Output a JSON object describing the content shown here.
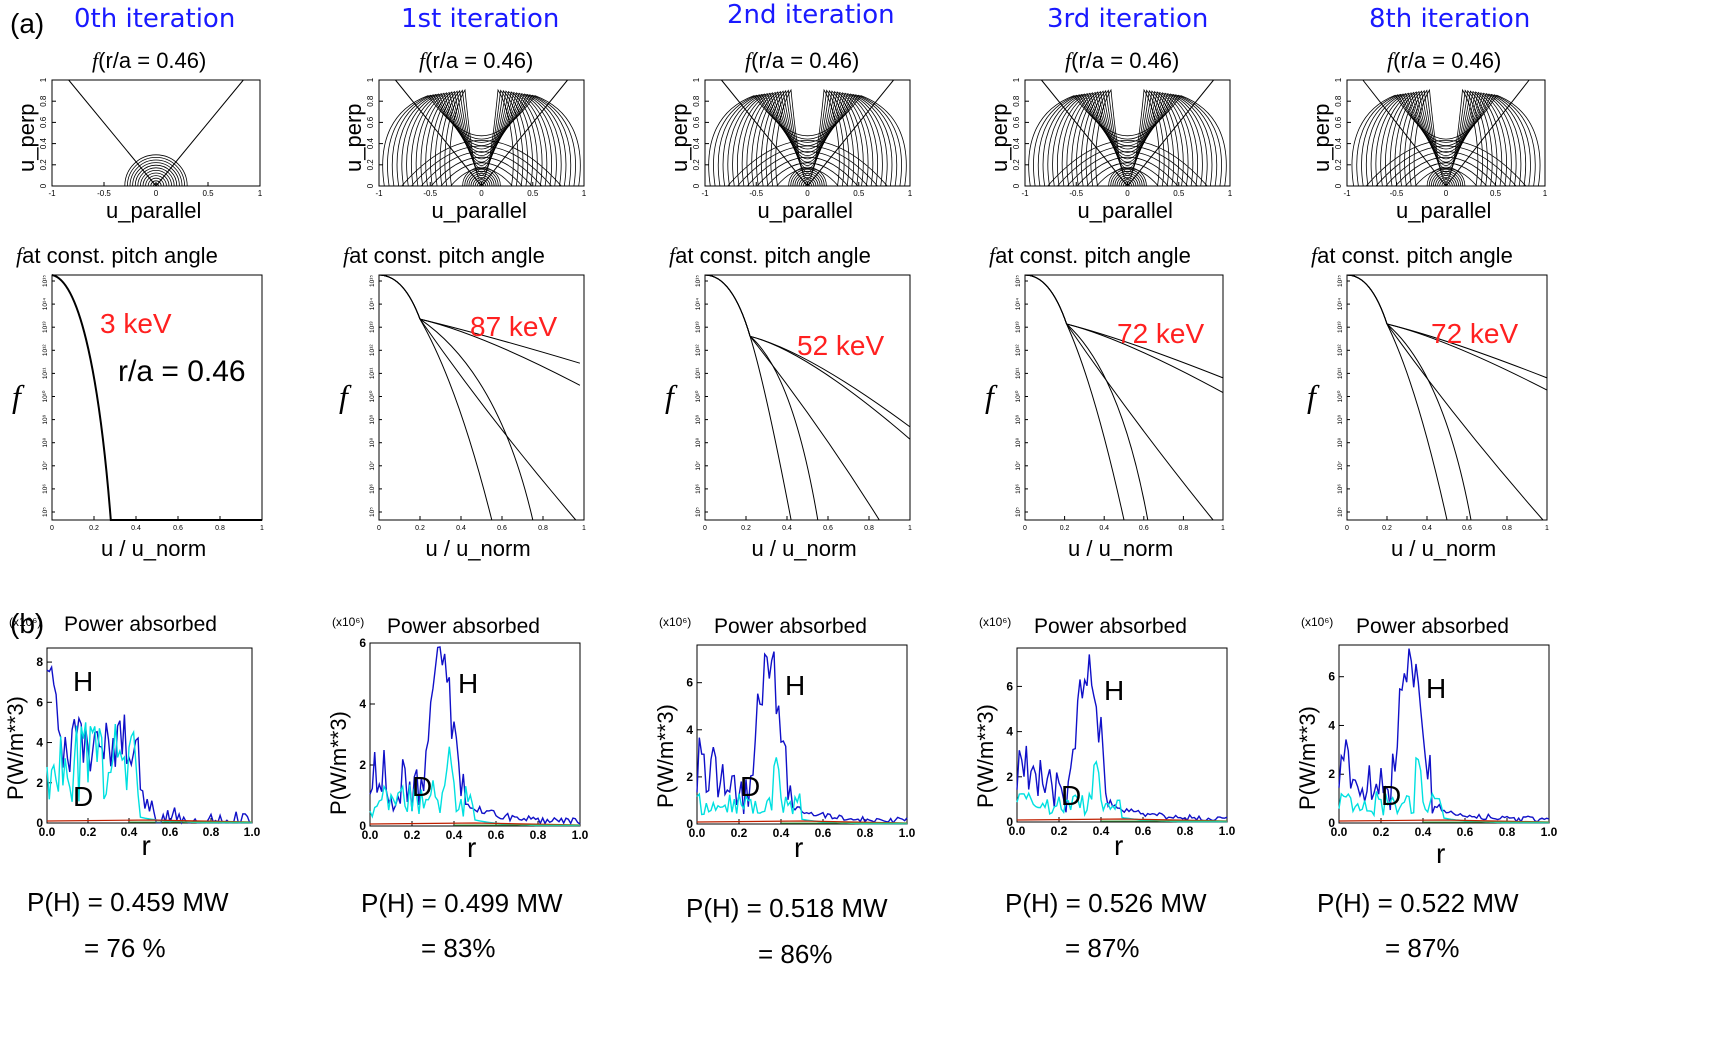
{
  "panel_a_label": "(a)",
  "panel_b_label": "(b)",
  "f_symbol": "f",
  "columns": [
    {
      "iteration": "0th iteration",
      "dist_title": "(r/a = 0.46)",
      "pitch_title": "at const. pitch angle",
      "energy": "3 keV",
      "radius_label": "r/a = 0.46",
      "ph": "P(H) = 0.459 MW",
      "pct": "=  76 %"
    },
    {
      "iteration": "1st iteration",
      "dist_title": "(r/a = 0.46)",
      "pitch_title": "at const. pitch angle",
      "energy": "87 keV",
      "ph": "P(H) = 0.499 MW",
      "pct": "=  83%"
    },
    {
      "iteration": "2nd iteration",
      "dist_title": "(r/a = 0.46)",
      "pitch_title": "at const. pitch angle",
      "energy": "52 keV",
      "ph": "P(H) = 0.518 MW",
      "pct": "= 86%"
    },
    {
      "iteration": "3rd iteration",
      "dist_title": "(r/a = 0.46)",
      "pitch_title": "at const. pitch angle",
      "energy": "72 keV",
      "ph": "P(H) = 0.526 MW",
      "pct": "=  87%"
    },
    {
      "iteration": "8th iteration",
      "dist_title": "(r/a = 0.46)",
      "pitch_title": "at const. pitch angle",
      "energy": "72 keV",
      "ph": "P(H) = 0.522 MW",
      "pct": "=  87%"
    }
  ],
  "axes": {
    "contour_x": "u_parallel",
    "contour_y": "u_perp",
    "pitch_x": "u / u_norm",
    "power_title": "Power absorbed",
    "power_mult": "(x10⁶)",
    "power_y": "P(W/m**3)",
    "power_x": "r",
    "h_label": "H",
    "d_label": "D"
  },
  "colors": {
    "h": "#1010c8",
    "d": "#00e0e0",
    "e": "#c02000",
    "iter": "#1a1aff",
    "energy": "#ff2020"
  },
  "chart_data": [
    {
      "type": "contour",
      "title": "(r/a = 0.46)",
      "xlabel": "u_parallel",
      "ylabel": "u_perp",
      "xlim": [
        -1,
        1
      ],
      "ylim": [
        0,
        1
      ],
      "xticks": [
        "-1",
        "-0.5",
        "0",
        "0.5",
        "1"
      ],
      "yticks": [
        "0",
        "0.2",
        "0.4",
        "0.6",
        "0.8",
        "1"
      ]
    },
    {
      "type": "line",
      "title": "at const. pitch angle",
      "xlabel": "u / u_norm",
      "ylabel": "f",
      "xlim": [
        0,
        1
      ],
      "ylog": true,
      "xticks": [
        "0",
        "0.2",
        "0.4",
        "0.6",
        "0.8",
        "1"
      ],
      "yticks": [
        "10⁵",
        "10⁶",
        "10⁷",
        "10⁸",
        "10⁹",
        "10¹⁰",
        "10¹¹",
        "10¹²",
        "10¹³",
        "10¹⁴",
        "10¹⁵"
      ]
    },
    {
      "type": "line",
      "title": "Power absorbed",
      "xlabel": "r",
      "ylabel": "P(W/m**3)",
      "series": [
        {
          "name": "H"
        },
        {
          "name": "D"
        }
      ],
      "xticks": [
        "0.0",
        "0.2",
        "0.4",
        "0.6",
        "0.8",
        "1.0"
      ],
      "yticks_by_panel": [
        [
          "0",
          "2",
          "4",
          "6",
          "8"
        ],
        [
          "0",
          "2",
          "4",
          "6"
        ],
        [
          "0",
          "2",
          "4",
          "6"
        ],
        [
          "0",
          "2",
          "4",
          "6"
        ],
        [
          "0",
          "2",
          "4",
          "6"
        ]
      ],
      "ylim_by_panel": [
        [
          0,
          8.7
        ],
        [
          0,
          6
        ],
        [
          0,
          7.6
        ],
        [
          0,
          7.7
        ],
        [
          0,
          7.3
        ]
      ],
      "H_peak_by_panel": [
        8.2,
        5.5,
        7.2,
        6.7,
        6.6
      ]
    }
  ]
}
